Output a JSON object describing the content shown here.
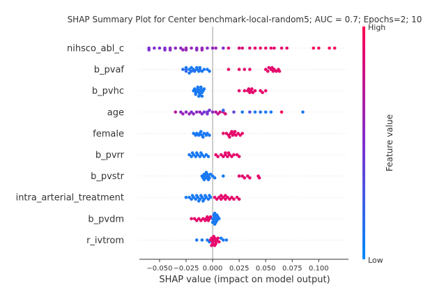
{
  "chart_data": {
    "type": "scatter",
    "title": "SHAP Summary Plot for Center benchmark-local-random5; AUC = 0.7; Epochs=2; 10",
    "xlabel": "SHAP value (impact on model output)",
    "xlim": [
      -0.069,
      0.128
    ],
    "xticks": [
      -0.05,
      -0.025,
      0.0,
      0.025,
      0.05,
      0.075,
      0.1
    ],
    "xtick_labels": [
      "−0.050",
      "−0.025",
      "0.000",
      "0.025",
      "0.050",
      "0.075",
      "0.100"
    ],
    "colorbar": {
      "label": "Feature value",
      "high_label": "High",
      "low_label": "Low",
      "low_color": "#008bfb",
      "high_color": "#ff0052",
      "mid_color": "#7f2fd0"
    },
    "features": [
      {
        "name": "nihsco_abl_c",
        "points": [
          [
            -0.06,
            0.5
          ],
          [
            -0.06,
            0.5
          ],
          [
            -0.055,
            0.5
          ],
          [
            -0.05,
            0.5
          ],
          [
            -0.045,
            0.5
          ],
          [
            -0.045,
            0.5
          ],
          [
            -0.04,
            0.55
          ],
          [
            -0.04,
            0.55
          ],
          [
            -0.035,
            0.55
          ],
          [
            -0.03,
            0.55
          ],
          [
            -0.028,
            0.6
          ],
          [
            -0.025,
            0.6
          ],
          [
            -0.025,
            0.6
          ],
          [
            -0.02,
            0.6
          ],
          [
            -0.015,
            0.55
          ],
          [
            -0.015,
            0.55
          ],
          [
            -0.01,
            0.6
          ],
          [
            -0.01,
            0.6
          ],
          [
            -0.005,
            0.55
          ],
          [
            0.0,
            0.6
          ],
          [
            0.003,
            0.6
          ],
          [
            0.01,
            0.5
          ],
          [
            0.015,
            0.85
          ],
          [
            0.025,
            0.85
          ],
          [
            0.028,
            0.85
          ],
          [
            0.035,
            0.85
          ],
          [
            0.04,
            0.9
          ],
          [
            0.045,
            0.9
          ],
          [
            0.05,
            0.9
          ],
          [
            0.055,
            0.9
          ],
          [
            0.058,
            0.9
          ],
          [
            0.065,
            0.9
          ],
          [
            0.07,
            0.9
          ],
          [
            0.095,
            0.95
          ],
          [
            0.1,
            0.95
          ],
          [
            0.11,
            0.95
          ],
          [
            0.115,
            0.95
          ]
        ]
      },
      {
        "name": "b_pvaf",
        "points": [
          [
            -0.025,
            0.2
          ],
          [
            -0.025,
            0.2
          ],
          [
            -0.022,
            0.1
          ],
          [
            -0.02,
            0.15
          ],
          [
            -0.02,
            0.1
          ],
          [
            -0.018,
            0.1
          ],
          [
            -0.017,
            0.15
          ],
          [
            -0.015,
            0.1
          ],
          [
            -0.013,
            0.1
          ],
          [
            -0.012,
            0.15
          ],
          [
            -0.01,
            0.1
          ],
          [
            -0.008,
            0.1
          ],
          [
            -0.005,
            0.1
          ],
          [
            -0.003,
            0.1
          ],
          [
            -0.025,
            0.1
          ],
          [
            -0.022,
            0.1
          ],
          [
            -0.015,
            0.1
          ],
          [
            -0.012,
            0.1
          ],
          [
            -0.028,
            0.15
          ],
          [
            0.015,
            0.9
          ],
          [
            0.025,
            0.9
          ],
          [
            0.03,
            0.9
          ],
          [
            0.035,
            0.9
          ],
          [
            0.05,
            0.9
          ],
          [
            0.052,
            0.9
          ],
          [
            0.055,
            0.9
          ],
          [
            0.057,
            0.9
          ],
          [
            0.058,
            0.9
          ],
          [
            0.06,
            0.9
          ],
          [
            0.062,
            0.9
          ],
          [
            0.063,
            0.9
          ],
          [
            0.053,
            0.9
          ],
          [
            0.056,
            0.9
          ]
        ]
      },
      {
        "name": "b_pvhc",
        "points": [
          [
            -0.018,
            0.1
          ],
          [
            -0.016,
            0.1
          ],
          [
            -0.015,
            0.1
          ],
          [
            -0.014,
            0.1
          ],
          [
            -0.013,
            0.1
          ],
          [
            -0.012,
            0.1
          ],
          [
            -0.011,
            0.1
          ],
          [
            -0.01,
            0.1
          ],
          [
            -0.009,
            0.1
          ],
          [
            -0.008,
            0.1
          ],
          [
            -0.017,
            0.1
          ],
          [
            -0.016,
            0.1
          ],
          [
            -0.012,
            0.1
          ],
          [
            -0.011,
            0.1
          ],
          [
            -0.014,
            0.1
          ],
          [
            -0.013,
            0.1
          ],
          [
            -0.01,
            0.1
          ],
          [
            0.025,
            0.9
          ],
          [
            0.03,
            0.9
          ],
          [
            0.033,
            0.9
          ],
          [
            0.035,
            0.9
          ],
          [
            0.036,
            0.9
          ],
          [
            0.038,
            0.9
          ],
          [
            0.04,
            0.9
          ],
          [
            0.045,
            0.9
          ],
          [
            0.047,
            0.9
          ],
          [
            0.05,
            0.9
          ],
          [
            0.034,
            0.9
          ],
          [
            0.037,
            0.9
          ]
        ]
      },
      {
        "name": "age",
        "points": [
          [
            -0.035,
            0.7
          ],
          [
            -0.03,
            0.55
          ],
          [
            -0.028,
            0.6
          ],
          [
            -0.025,
            0.55
          ],
          [
            -0.02,
            0.5
          ],
          [
            -0.018,
            0.55
          ],
          [
            -0.015,
            0.55
          ],
          [
            -0.012,
            0.6
          ],
          [
            -0.01,
            0.5
          ],
          [
            -0.008,
            0.45
          ],
          [
            -0.005,
            0.4
          ],
          [
            -0.005,
            0.5
          ],
          [
            -0.003,
            0.45
          ],
          [
            0.0,
            0.55
          ],
          [
            0.003,
            0.7
          ],
          [
            0.005,
            0.75
          ],
          [
            0.007,
            0.8
          ],
          [
            0.01,
            0.8
          ],
          [
            0.012,
            0.85
          ],
          [
            0.02,
            0.35
          ],
          [
            0.028,
            0.1
          ],
          [
            0.035,
            0.3
          ],
          [
            0.04,
            0.1
          ],
          [
            0.045,
            0.15
          ],
          [
            0.05,
            0.1
          ],
          [
            0.055,
            0.1
          ],
          [
            0.065,
            0.95
          ],
          [
            0.085,
            0.1
          ],
          [
            -0.022,
            0.6
          ],
          [
            0.01,
            0.2
          ]
        ]
      },
      {
        "name": "female",
        "points": [
          [
            -0.015,
            0.1
          ],
          [
            -0.012,
            0.1
          ],
          [
            -0.01,
            0.1
          ],
          [
            -0.008,
            0.1
          ],
          [
            -0.005,
            0.1
          ],
          [
            -0.003,
            0.1
          ],
          [
            -0.018,
            0.1
          ],
          [
            -0.016,
            0.1
          ],
          [
            -0.013,
            0.1
          ],
          [
            -0.011,
            0.1
          ],
          [
            -0.009,
            0.1
          ],
          [
            -0.006,
            0.1
          ],
          [
            0.01,
            0.9
          ],
          [
            0.013,
            0.9
          ],
          [
            0.015,
            0.9
          ],
          [
            0.017,
            0.9
          ],
          [
            0.019,
            0.9
          ],
          [
            0.02,
            0.9
          ],
          [
            0.022,
            0.9
          ],
          [
            0.024,
            0.9
          ],
          [
            0.026,
            0.9
          ],
          [
            0.028,
            0.9
          ],
          [
            0.018,
            0.9
          ],
          [
            0.021,
            0.9
          ],
          [
            0.016,
            0.9
          ]
        ]
      },
      {
        "name": "b_pvrr",
        "points": [
          [
            -0.022,
            0.1
          ],
          [
            -0.02,
            0.1
          ],
          [
            -0.018,
            0.1
          ],
          [
            -0.016,
            0.1
          ],
          [
            -0.014,
            0.1
          ],
          [
            -0.012,
            0.1
          ],
          [
            -0.01,
            0.1
          ],
          [
            -0.008,
            0.1
          ],
          [
            -0.006,
            0.1
          ],
          [
            -0.004,
            0.1
          ],
          [
            -0.019,
            0.1
          ],
          [
            -0.015,
            0.1
          ],
          [
            -0.011,
            0.1
          ],
          [
            0.003,
            0.9
          ],
          [
            0.005,
            0.9
          ],
          [
            0.008,
            0.9
          ],
          [
            0.01,
            0.9
          ],
          [
            0.012,
            0.9
          ],
          [
            0.014,
            0.9
          ],
          [
            0.016,
            0.9
          ],
          [
            0.018,
            0.9
          ],
          [
            0.02,
            0.9
          ],
          [
            0.023,
            0.9
          ],
          [
            0.025,
            0.9
          ],
          [
            0.012,
            0.9
          ],
          [
            0.015,
            0.9
          ]
        ]
      },
      {
        "name": "b_pvstr",
        "points": [
          [
            -0.01,
            0.1
          ],
          [
            -0.009,
            0.1
          ],
          [
            -0.008,
            0.1
          ],
          [
            -0.007,
            0.1
          ],
          [
            -0.006,
            0.1
          ],
          [
            -0.005,
            0.1
          ],
          [
            -0.004,
            0.1
          ],
          [
            -0.003,
            0.1
          ],
          [
            -0.002,
            0.1
          ],
          [
            -0.008,
            0.1
          ],
          [
            -0.006,
            0.1
          ],
          [
            -0.004,
            0.1
          ],
          [
            0.0,
            0.1
          ],
          [
            0.002,
            0.1
          ],
          [
            0.01,
            0.1
          ],
          [
            0.025,
            0.9
          ],
          [
            0.028,
            0.9
          ],
          [
            0.03,
            0.9
          ],
          [
            0.033,
            0.9
          ],
          [
            0.035,
            0.9
          ],
          [
            0.043,
            0.9
          ],
          [
            0.044,
            0.9
          ]
        ]
      },
      {
        "name": "intra_arterial_treatment",
        "points": [
          [
            -0.025,
            0.1
          ],
          [
            -0.022,
            0.1
          ],
          [
            -0.02,
            0.1
          ],
          [
            -0.018,
            0.1
          ],
          [
            -0.016,
            0.1
          ],
          [
            -0.014,
            0.1
          ],
          [
            -0.012,
            0.1
          ],
          [
            -0.01,
            0.1
          ],
          [
            -0.008,
            0.1
          ],
          [
            -0.006,
            0.1
          ],
          [
            -0.004,
            0.1
          ],
          [
            -0.002,
            0.1
          ],
          [
            -0.019,
            0.1
          ],
          [
            -0.015,
            0.1
          ],
          [
            -0.011,
            0.1
          ],
          [
            -0.007,
            0.1
          ],
          [
            -0.003,
            0.1
          ],
          [
            -0.013,
            0.1
          ],
          [
            -0.009,
            0.1
          ],
          [
            0.002,
            0.9
          ],
          [
            0.004,
            0.9
          ],
          [
            0.006,
            0.9
          ],
          [
            0.008,
            0.9
          ],
          [
            0.01,
            0.9
          ],
          [
            0.012,
            0.9
          ],
          [
            0.014,
            0.9
          ],
          [
            0.016,
            0.9
          ],
          [
            0.018,
            0.9
          ],
          [
            0.02,
            0.9
          ],
          [
            0.023,
            0.9
          ],
          [
            0.025,
            0.9
          ],
          [
            0.008,
            0.9
          ],
          [
            0.012,
            0.9
          ]
        ]
      },
      {
        "name": "b_pvdm",
        "points": [
          [
            -0.02,
            0.9
          ],
          [
            -0.017,
            0.9
          ],
          [
            -0.015,
            0.9
          ],
          [
            -0.013,
            0.9
          ],
          [
            -0.011,
            0.9
          ],
          [
            -0.009,
            0.9
          ],
          [
            -0.007,
            0.9
          ],
          [
            -0.006,
            0.9
          ],
          [
            -0.005,
            0.9
          ],
          [
            -0.004,
            0.9
          ],
          [
            -0.003,
            0.9
          ],
          [
            -0.002,
            0.9
          ],
          [
            0.0,
            0.1
          ],
          [
            0.001,
            0.1
          ],
          [
            0.002,
            0.1
          ],
          [
            0.003,
            0.1
          ],
          [
            0.004,
            0.1
          ],
          [
            0.005,
            0.1
          ],
          [
            0.0,
            0.1
          ],
          [
            0.001,
            0.1
          ],
          [
            0.002,
            0.1
          ],
          [
            0.003,
            0.1
          ],
          [
            0.004,
            0.1
          ],
          [
            0.006,
            0.1
          ],
          [
            0.002,
            0.1
          ]
        ]
      },
      {
        "name": "r_ivtrom",
        "points": [
          [
            -0.015,
            0.1
          ],
          [
            -0.01,
            0.1
          ],
          [
            -0.005,
            0.1
          ],
          [
            -0.003,
            0.1
          ],
          [
            -0.002,
            0.9
          ],
          [
            -0.001,
            0.9
          ],
          [
            0.0,
            0.9
          ],
          [
            0.001,
            0.9
          ],
          [
            0.002,
            0.9
          ],
          [
            0.003,
            0.9
          ],
          [
            0.004,
            0.9
          ],
          [
            0.005,
            0.9
          ],
          [
            0.0,
            0.9
          ],
          [
            0.001,
            0.9
          ],
          [
            0.002,
            0.9
          ],
          [
            0.003,
            0.9
          ],
          [
            -0.001,
            0.9
          ],
          [
            0.006,
            0.9
          ],
          [
            0.01,
            0.1
          ],
          [
            0.013,
            0.1
          ],
          [
            0.008,
            0.1
          ]
        ]
      }
    ]
  }
}
